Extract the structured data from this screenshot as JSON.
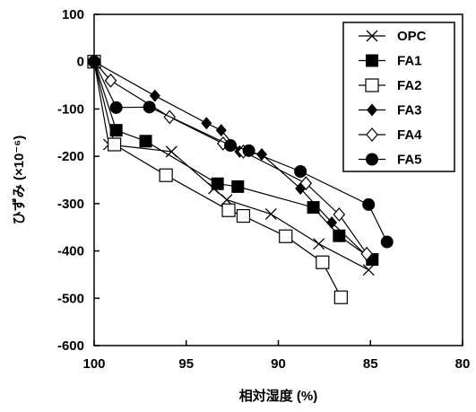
{
  "chart_data": {
    "type": "line",
    "title": "",
    "xlabel": "相対湿度 (%)",
    "ylabel": "ひずみ (×10⁻⁶)",
    "xlim": [
      100,
      80
    ],
    "ylim": [
      -600,
      100
    ],
    "xticks": [
      100,
      95,
      90,
      85,
      80
    ],
    "yticks": [
      100,
      0,
      -100,
      -200,
      -300,
      -400,
      -500,
      -600
    ],
    "x_tick_labels": [
      "100",
      "95",
      "90",
      "85",
      "80"
    ],
    "y_tick_labels": [
      "100",
      "0",
      "-100",
      "-200",
      "-300",
      "-400",
      "-500",
      "-600"
    ],
    "grid": false,
    "legend_position": "top-right",
    "series": [
      {
        "name": "OPC",
        "marker": "x-cross",
        "points": [
          [
            100.0,
            0
          ],
          [
            99.2,
            -175
          ],
          [
            95.8,
            -190
          ],
          [
            93.5,
            -268
          ],
          [
            92.8,
            -292
          ],
          [
            90.4,
            -322
          ],
          [
            87.8,
            -385
          ],
          [
            85.1,
            -440
          ]
        ]
      },
      {
        "name": "FA1",
        "marker": "filled-square",
        "points": [
          [
            100.0,
            0
          ],
          [
            98.8,
            -145
          ],
          [
            97.2,
            -168
          ],
          [
            93.3,
            -258
          ],
          [
            92.2,
            -264
          ],
          [
            88.1,
            -308
          ],
          [
            86.7,
            -368
          ],
          [
            84.9,
            -418
          ]
        ]
      },
      {
        "name": "FA2",
        "marker": "open-square",
        "points": [
          [
            100.0,
            0
          ],
          [
            98.9,
            -175
          ],
          [
            96.1,
            -240
          ],
          [
            92.7,
            -314
          ],
          [
            91.9,
            -326
          ],
          [
            89.6,
            -369
          ],
          [
            87.6,
            -424
          ],
          [
            86.6,
            -498
          ]
        ]
      },
      {
        "name": "FA3",
        "marker": "filled-diamond",
        "points": [
          [
            100.0,
            0
          ],
          [
            96.7,
            -72
          ],
          [
            93.9,
            -130
          ],
          [
            93.1,
            -145
          ],
          [
            92.1,
            -190
          ],
          [
            90.9,
            -196
          ],
          [
            88.8,
            -268
          ],
          [
            87.1,
            -340
          ],
          [
            85.0,
            -418
          ]
        ]
      },
      {
        "name": "FA4",
        "marker": "open-diamond",
        "points": [
          [
            100.0,
            0
          ],
          [
            99.1,
            -40
          ],
          [
            95.9,
            -117
          ],
          [
            93.0,
            -173
          ],
          [
            91.9,
            -190
          ],
          [
            88.5,
            -257
          ],
          [
            86.7,
            -323
          ],
          [
            85.2,
            -406
          ]
        ]
      },
      {
        "name": "FA5",
        "marker": "filled-circle",
        "points": [
          [
            100.0,
            0
          ],
          [
            98.8,
            -97
          ],
          [
            97.0,
            -96
          ],
          [
            92.6,
            -177
          ],
          [
            91.6,
            -188
          ],
          [
            88.8,
            -232
          ],
          [
            85.1,
            -302
          ],
          [
            84.1,
            -381
          ]
        ]
      }
    ]
  }
}
